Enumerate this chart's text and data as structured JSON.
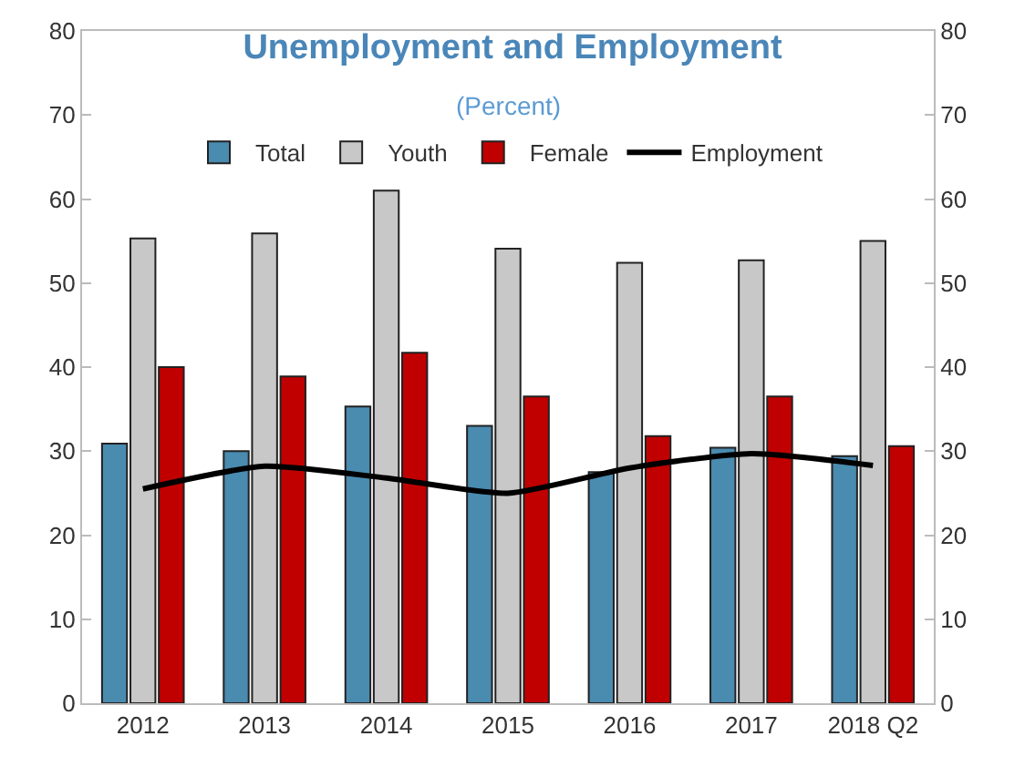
{
  "chart_data": {
    "type": "bar",
    "title": "Unemployment and Employment",
    "subtitle": "(Percent)",
    "categories": [
      "2012",
      "2013",
      "2014",
      "2015",
      "2016",
      "2017",
      "2018 Q2"
    ],
    "series": [
      {
        "name": "Total",
        "color": "#4a8bb0",
        "values": [
          30.9,
          30.0,
          35.3,
          33.0,
          27.5,
          30.4,
          29.4
        ]
      },
      {
        "name": "Youth",
        "color": "#c8c8c8",
        "values": [
          55.3,
          55.9,
          61.0,
          54.1,
          52.4,
          52.7,
          55.0
        ]
      },
      {
        "name": "Female",
        "color": "#c00000",
        "values": [
          40.0,
          38.9,
          41.7,
          36.5,
          31.8,
          36.5,
          30.6
        ]
      },
      {
        "name": "Employment",
        "color": "#000000",
        "type": "line",
        "axis": "y2",
        "values": [
          25.5,
          28.2,
          26.8,
          25.0,
          28.0,
          29.7,
          28.3
        ]
      }
    ],
    "ylim": [
      0,
      80
    ],
    "yticks": [
      0,
      10,
      20,
      30,
      40,
      50,
      60,
      70,
      80
    ],
    "y2lim": [
      0,
      80
    ],
    "y2ticks": [
      0,
      10,
      20,
      30,
      40,
      50,
      60,
      70,
      80
    ],
    "legend": "top",
    "marker": "none",
    "line_style": "solid"
  }
}
